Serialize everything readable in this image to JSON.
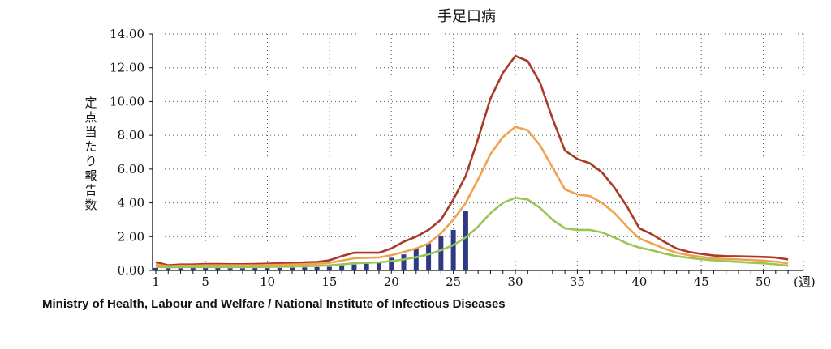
{
  "chart_data": {
    "type": "line",
    "title": "手足口病",
    "ylabel": "定点当たり報告数",
    "x_unit_label": "(週)",
    "xlim": [
      1,
      52
    ],
    "ylim": [
      0,
      14
    ],
    "grid": true,
    "x_ticks": [
      1,
      5,
      10,
      15,
      20,
      25,
      30,
      35,
      40,
      45,
      50
    ],
    "y_ticks": [
      "0.00",
      "2.00",
      "4.00",
      "6.00",
      "8.00",
      "10.00",
      "12.00",
      "14.00"
    ],
    "line_series": [
      {
        "color": "#a83a28",
        "x": [
          1,
          2,
          3,
          4,
          5,
          6,
          7,
          8,
          9,
          10,
          11,
          12,
          13,
          14,
          15,
          16,
          17,
          18,
          19,
          20,
          21,
          22,
          23,
          24,
          25,
          26,
          27,
          28,
          29,
          30,
          31,
          32,
          33,
          34,
          35,
          36,
          37,
          38,
          39,
          40,
          41,
          42,
          43,
          44,
          45,
          46,
          47,
          48,
          49,
          50,
          51,
          52
        ],
        "y": [
          0.5,
          0.3,
          0.35,
          0.35,
          0.38,
          0.38,
          0.37,
          0.37,
          0.38,
          0.4,
          0.42,
          0.44,
          0.48,
          0.5,
          0.6,
          0.85,
          1.05,
          1.05,
          1.05,
          1.3,
          1.7,
          2.0,
          2.4,
          3.0,
          4.2,
          5.6,
          7.8,
          10.2,
          11.7,
          12.7,
          12.4,
          11.1,
          9.0,
          7.1,
          6.6,
          6.35,
          5.8,
          4.9,
          3.8,
          2.5,
          2.15,
          1.7,
          1.3,
          1.1,
          0.98,
          0.88,
          0.85,
          0.84,
          0.82,
          0.8,
          0.76,
          0.65
        ]
      },
      {
        "color": "#f0a24f",
        "x": [
          1,
          2,
          3,
          4,
          5,
          6,
          7,
          8,
          9,
          10,
          11,
          12,
          13,
          14,
          15,
          16,
          17,
          18,
          19,
          20,
          21,
          22,
          23,
          24,
          25,
          26,
          27,
          28,
          29,
          30,
          31,
          32,
          33,
          34,
          35,
          36,
          37,
          38,
          39,
          40,
          41,
          42,
          43,
          44,
          45,
          46,
          47,
          48,
          49,
          50,
          51,
          52
        ],
        "y": [
          0.35,
          0.25,
          0.28,
          0.28,
          0.3,
          0.3,
          0.3,
          0.3,
          0.3,
          0.32,
          0.33,
          0.35,
          0.37,
          0.4,
          0.45,
          0.58,
          0.72,
          0.75,
          0.77,
          0.9,
          1.1,
          1.3,
          1.6,
          2.2,
          3.0,
          4.0,
          5.4,
          6.9,
          7.9,
          8.5,
          8.3,
          7.4,
          6.1,
          4.8,
          4.5,
          4.4,
          4.0,
          3.4,
          2.6,
          1.9,
          1.6,
          1.3,
          1.05,
          0.9,
          0.8,
          0.72,
          0.68,
          0.65,
          0.62,
          0.58,
          0.52,
          0.42
        ]
      },
      {
        "color": "#99c555",
        "x": [
          1,
          2,
          3,
          4,
          5,
          6,
          7,
          8,
          9,
          10,
          11,
          12,
          13,
          14,
          15,
          16,
          17,
          18,
          19,
          20,
          21,
          22,
          23,
          24,
          25,
          26,
          27,
          28,
          29,
          30,
          31,
          32,
          33,
          34,
          35,
          36,
          37,
          38,
          39,
          40,
          41,
          42,
          43,
          44,
          45,
          46,
          47,
          48,
          49,
          50,
          51,
          52
        ],
        "y": [
          0.22,
          0.18,
          0.2,
          0.2,
          0.2,
          0.2,
          0.2,
          0.2,
          0.2,
          0.21,
          0.22,
          0.23,
          0.25,
          0.27,
          0.3,
          0.36,
          0.42,
          0.45,
          0.48,
          0.55,
          0.65,
          0.78,
          0.95,
          1.2,
          1.5,
          1.95,
          2.6,
          3.4,
          4.0,
          4.3,
          4.2,
          3.7,
          3.0,
          2.5,
          2.4,
          2.4,
          2.25,
          1.95,
          1.6,
          1.35,
          1.2,
          1.0,
          0.85,
          0.75,
          0.66,
          0.6,
          0.55,
          0.5,
          0.46,
          0.42,
          0.36,
          0.28
        ]
      }
    ],
    "bar_series": {
      "color": "#2e3a85",
      "x": [
        1,
        2,
        3,
        4,
        5,
        6,
        7,
        8,
        9,
        10,
        11,
        12,
        13,
        14,
        15,
        16,
        17,
        18,
        19,
        20,
        21,
        22,
        23,
        24,
        25,
        26
      ],
      "values": [
        0.15,
        0.12,
        0.13,
        0.14,
        0.14,
        0.14,
        0.13,
        0.13,
        0.14,
        0.14,
        0.15,
        0.16,
        0.18,
        0.2,
        0.22,
        0.3,
        0.35,
        0.4,
        0.45,
        0.75,
        0.95,
        1.3,
        1.6,
        2.05,
        2.4,
        3.5
      ]
    }
  },
  "footer": {
    "credit": "Ministry of Health, Labour and Welfare / National Institute of Infectious Diseases"
  }
}
